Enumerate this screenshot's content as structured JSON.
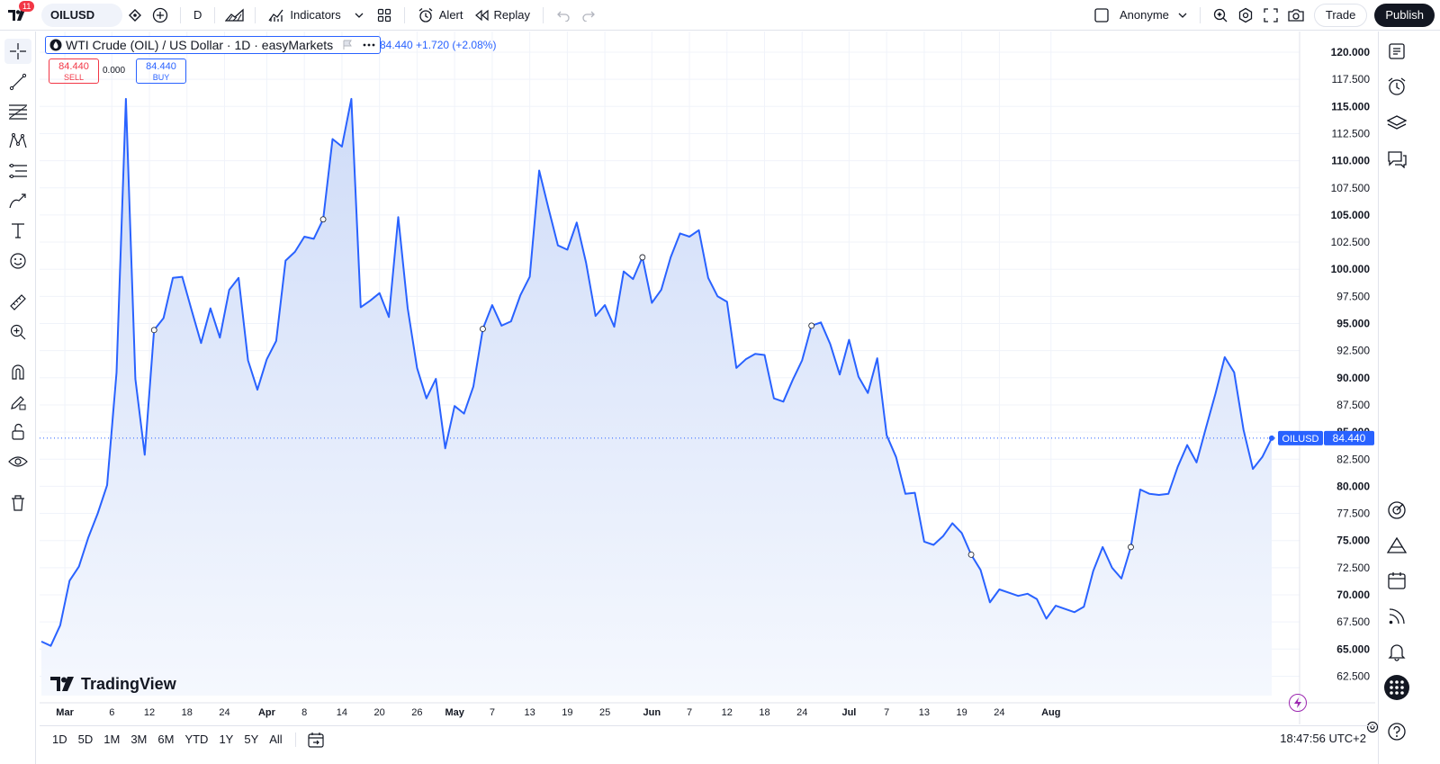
{
  "topbar": {
    "notification_count": "11",
    "symbol": "OILUSD",
    "interval": "D",
    "indicators_label": "Indicators",
    "alert_label": "Alert",
    "replay_label": "Replay",
    "account_label": "Anonyme",
    "trade_label": "Trade",
    "publish_label": "Publish"
  },
  "legend": {
    "title": "WTI Crude (OIL) / US Dollar · 1D · easyMarkets",
    "values": "84.440  +1.720 (+2.08%)",
    "sell_price": "84.440",
    "sell_label": "SELL",
    "spread": "0.000",
    "buy_price": "84.440",
    "buy_label": "BUY"
  },
  "price_label": {
    "symbol": "OILUSD",
    "price": "84.440"
  },
  "watermark": "TradingView",
  "bottom": {
    "ranges": [
      "1D",
      "5D",
      "1M",
      "3M",
      "6M",
      "YTD",
      "1Y",
      "5Y",
      "All"
    ],
    "clock": "18:47:56 UTC+2"
  },
  "colors": {
    "line": "#2962ff",
    "fill_top": "#cfdcf8",
    "fill_bottom": "#f5f8fe",
    "sell": "#f23645",
    "buy": "#2962ff"
  },
  "chart_data": {
    "type": "area",
    "y_ticks": [
      "120.000",
      "117.500",
      "115.000",
      "112.500",
      "110.000",
      "107.500",
      "105.000",
      "102.500",
      "100.000",
      "97.500",
      "95.000",
      "92.500",
      "90.000",
      "87.500",
      "85.000",
      "82.500",
      "80.000",
      "77.500",
      "75.000",
      "72.500",
      "70.000",
      "67.500",
      "65.000",
      "62.500"
    ],
    "x_ticks": [
      {
        "label": "Mar",
        "bold": true,
        "i": 2.5
      },
      {
        "label": "6",
        "bold": false,
        "i": 7.5
      },
      {
        "label": "12",
        "bold": false,
        "i": 11.5
      },
      {
        "label": "18",
        "bold": false,
        "i": 15.5
      },
      {
        "label": "24",
        "bold": false,
        "i": 19.5
      },
      {
        "label": "Apr",
        "bold": true,
        "i": 24
      },
      {
        "label": "8",
        "bold": false,
        "i": 28
      },
      {
        "label": "14",
        "bold": false,
        "i": 32
      },
      {
        "label": "20",
        "bold": false,
        "i": 36
      },
      {
        "label": "26",
        "bold": false,
        "i": 40
      },
      {
        "label": "May",
        "bold": true,
        "i": 44
      },
      {
        "label": "7",
        "bold": false,
        "i": 48
      },
      {
        "label": "13",
        "bold": false,
        "i": 52
      },
      {
        "label": "19",
        "bold": false,
        "i": 56
      },
      {
        "label": "25",
        "bold": false,
        "i": 60
      },
      {
        "label": "Jun",
        "bold": true,
        "i": 65
      },
      {
        "label": "7",
        "bold": false,
        "i": 69
      },
      {
        "label": "12",
        "bold": false,
        "i": 73
      },
      {
        "label": "18",
        "bold": false,
        "i": 77
      },
      {
        "label": "24",
        "bold": false,
        "i": 81
      },
      {
        "label": "Jul",
        "bold": true,
        "i": 86
      },
      {
        "label": "7",
        "bold": false,
        "i": 90
      },
      {
        "label": "13",
        "bold": false,
        "i": 94
      },
      {
        "label": "19",
        "bold": false,
        "i": 98
      },
      {
        "label": "24",
        "bold": false,
        "i": 102
      },
      {
        "label": "Aug",
        "bold": true,
        "i": 107.5
      }
    ],
    "ylim": [
      62.5,
      120
    ],
    "values": [
      65.7,
      65.3,
      67.2,
      71.3,
      72.6,
      75.3,
      77.5,
      80.1,
      90.5,
      115.7,
      89.9,
      82.9,
      94.4,
      95.5,
      99.2,
      99.3,
      96.2,
      93.2,
      96.4,
      93.7,
      98.1,
      99.2,
      91.6,
      88.9,
      91.7,
      93.4,
      100.8,
      101.6,
      103.0,
      102.8,
      104.6,
      112.0,
      111.3,
      115.7,
      96.5,
      97.1,
      97.8,
      95.6,
      104.8,
      96.4,
      90.9,
      88.1,
      89.9,
      83.5,
      87.4,
      86.7,
      89.2,
      94.5,
      96.7,
      94.8,
      95.2,
      97.6,
      99.3,
      109.1,
      105.6,
      102.2,
      101.8,
      104.3,
      100.6,
      95.7,
      96.7,
      94.7,
      99.8,
      99.1,
      101.1,
      96.9,
      98.1,
      101.1,
      103.3,
      103.0,
      103.6,
      99.2,
      97.5,
      97.0,
      90.9,
      91.7,
      92.2,
      92.1,
      88.1,
      87.8,
      89.8,
      91.6,
      94.8,
      95.1,
      93.1,
      90.3,
      93.5,
      90.1,
      88.6,
      91.8,
      84.7,
      82.7,
      79.3,
      79.4,
      74.9,
      74.6,
      75.4,
      76.6,
      75.7,
      73.7,
      72.3,
      69.3,
      70.5,
      70.2,
      69.9,
      70.1,
      69.6,
      67.8,
      69.0,
      68.7,
      68.4,
      68.9,
      72.2,
      74.4,
      72.5,
      71.5,
      74.4,
      79.7,
      79.3,
      79.2,
      79.3,
      81.8,
      83.8,
      82.2,
      85.4,
      88.5,
      91.9,
      90.5,
      85.2,
      81.6,
      82.7,
      84.44
    ],
    "markers": [
      12,
      30,
      47,
      64,
      82,
      99,
      116
    ],
    "last_value": 84.44
  }
}
